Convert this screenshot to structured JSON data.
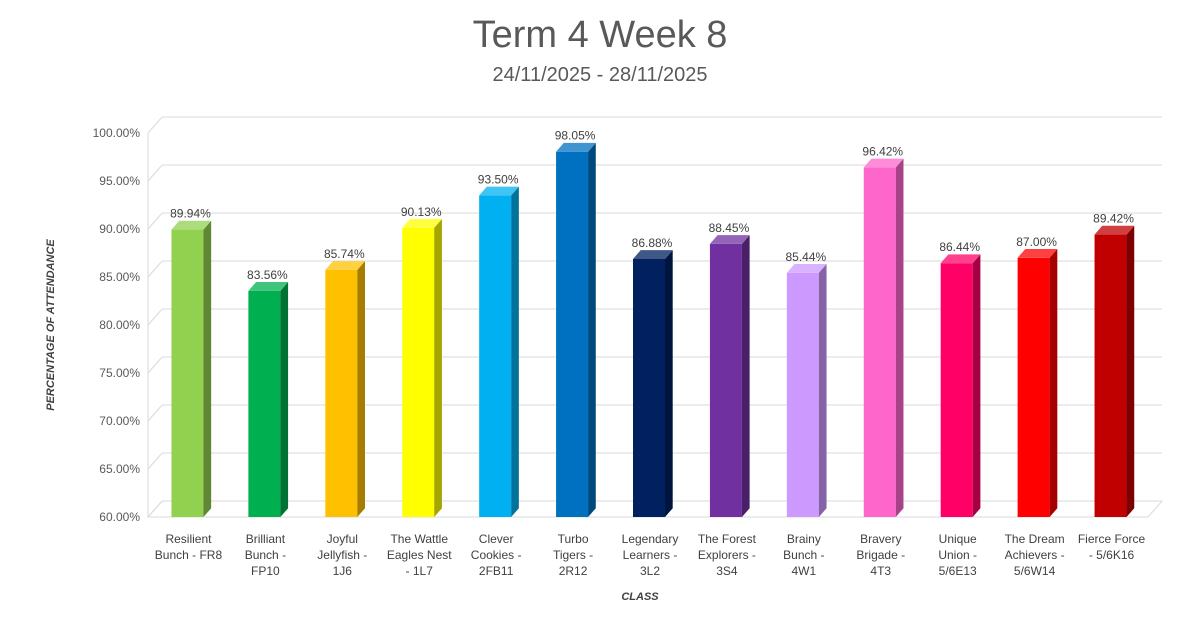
{
  "chart_data": {
    "type": "bar",
    "title": "Term 4 Week 8",
    "subtitle": "24/11/2025 - 28/11/2025",
    "xlabel": "CLASS",
    "ylabel": "PERCENTAGE OF ATTENDANCE",
    "ylim": [
      60,
      100
    ],
    "yticks": [
      "60.00%",
      "65.00%",
      "70.00%",
      "75.00%",
      "80.00%",
      "85.00%",
      "90.00%",
      "95.00%",
      "100.00%"
    ],
    "grid": true,
    "legend": "none",
    "categories": [
      [
        "Resilient",
        "Bunch - FR8"
      ],
      [
        "Brilliant",
        "Bunch -",
        "FP10"
      ],
      [
        "Joyful",
        "Jellyfish -",
        "1J6"
      ],
      [
        "The Wattle",
        "Eagles Nest",
        "- 1L7"
      ],
      [
        "Clever",
        "Cookies -",
        "2FB11"
      ],
      [
        "Turbo",
        "Tigers -",
        "2R12"
      ],
      [
        "Legendary",
        "Learners -",
        "3L2"
      ],
      [
        "The Forest",
        "Explorers -",
        "3S4"
      ],
      [
        "Brainy",
        "Bunch -",
        "4W1"
      ],
      [
        "Bravery",
        "Brigade -",
        "4T3"
      ],
      [
        "Unique",
        "Union -",
        "5/6E13"
      ],
      [
        "The Dream",
        "Achievers -",
        "5/6W14"
      ],
      [
        "Fierce Force",
        "- 5/6K16"
      ]
    ],
    "values": [
      89.94,
      83.56,
      85.74,
      90.13,
      93.5,
      98.05,
      86.88,
      88.45,
      85.44,
      96.42,
      86.44,
      87.0,
      89.42
    ],
    "value_labels": [
      "89.94%",
      "83.56%",
      "85.74%",
      "90.13%",
      "93.50%",
      "98.05%",
      "86.88%",
      "88.45%",
      "85.44%",
      "96.42%",
      "86.44%",
      "87.00%",
      "89.42%"
    ],
    "colors": [
      "#92D050",
      "#00B050",
      "#FFC000",
      "#FFFF00",
      "#00B0F0",
      "#0070C0",
      "#002060",
      "#7030A0",
      "#CC99FF",
      "#FF66CC",
      "#FF0066",
      "#FF0000",
      "#C00000"
    ]
  }
}
